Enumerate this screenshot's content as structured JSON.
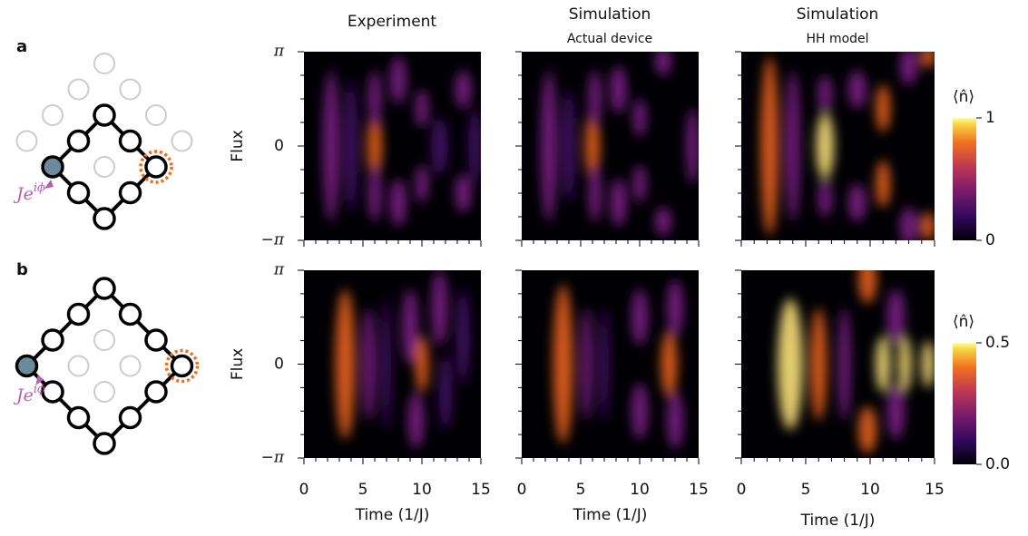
{
  "panel_labels": [
    "a",
    "b"
  ],
  "column_titles": [
    "Experiment",
    "Simulation",
    "Simulation"
  ],
  "column_subtitles": [
    "Actual device",
    "HH model"
  ],
  "y_label": "Flux",
  "y_tick_labels": [
    "π",
    "0",
    "−π"
  ],
  "x_tick_labels": [
    "0",
    "5",
    "10",
    "15"
  ],
  "x_label": "Time (1/J)",
  "coupling_label": "Je",
  "coupling_exponent": "iϕ",
  "colorbars": [
    {
      "label": "⟨n̂⟩",
      "top_label": "1",
      "bottom_label": "0"
    },
    {
      "label": "⟨n̂⟩",
      "top_label": "0.5",
      "bottom_label": "0.0"
    }
  ]
}
